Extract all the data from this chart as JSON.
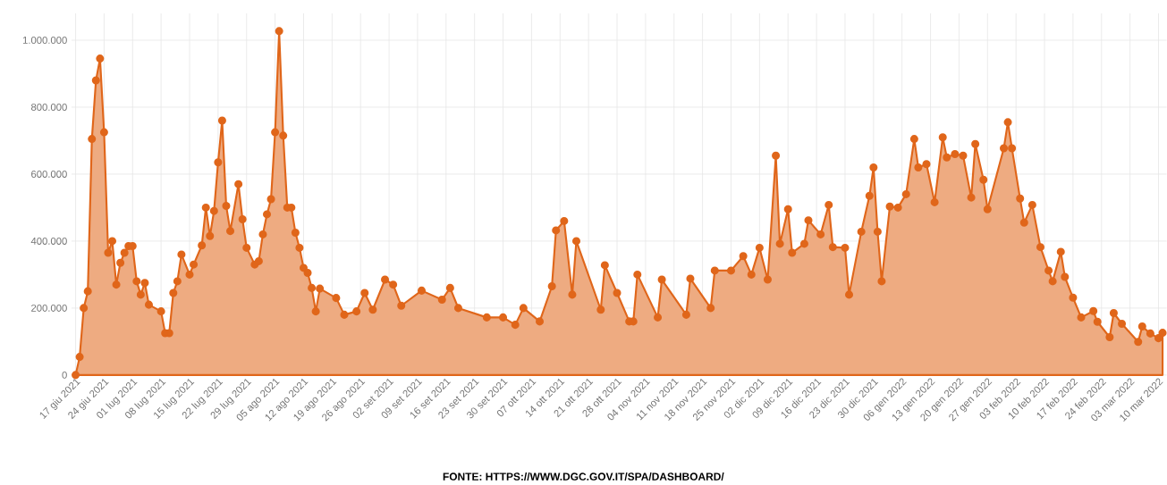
{
  "chart_data": {
    "type": "area",
    "x": [
      "2021-06-17",
      "2021-06-18",
      "2021-06-19",
      "2021-06-20",
      "2021-06-21",
      "2021-06-22",
      "2021-06-23",
      "2021-06-24",
      "2021-06-25",
      "2021-06-26",
      "2021-06-27",
      "2021-06-28",
      "2021-06-29",
      "2021-06-30",
      "2021-07-01",
      "2021-07-02",
      "2021-07-03",
      "2021-07-04",
      "2021-07-05",
      "2021-07-08",
      "2021-07-09",
      "2021-07-10",
      "2021-07-11",
      "2021-07-12",
      "2021-07-13",
      "2021-07-15",
      "2021-07-16",
      "2021-07-18",
      "2021-07-19",
      "2021-07-20",
      "2021-07-21",
      "2021-07-22",
      "2021-07-23",
      "2021-07-24",
      "2021-07-25",
      "2021-07-27",
      "2021-07-28",
      "2021-07-29",
      "2021-07-31",
      "2021-08-01",
      "2021-08-02",
      "2021-08-03",
      "2021-08-04",
      "2021-08-05",
      "2021-08-06",
      "2021-08-07",
      "2021-08-08",
      "2021-08-09",
      "2021-08-10",
      "2021-08-11",
      "2021-08-12",
      "2021-08-13",
      "2021-08-14",
      "2021-08-15",
      "2021-08-16",
      "2021-08-20",
      "2021-08-22",
      "2021-08-25",
      "2021-08-27",
      "2021-08-29",
      "2021-09-01",
      "2021-09-03",
      "2021-09-05",
      "2021-09-10",
      "2021-09-15",
      "2021-09-17",
      "2021-09-19",
      "2021-09-26",
      "2021-09-30",
      "2021-10-03",
      "2021-10-05",
      "2021-10-09",
      "2021-10-12",
      "2021-10-13",
      "2021-10-15",
      "2021-10-17",
      "2021-10-18",
      "2021-10-24",
      "2021-10-25",
      "2021-10-28",
      "2021-10-31",
      "2021-11-01",
      "2021-11-02",
      "2021-11-07",
      "2021-11-08",
      "2021-11-14",
      "2021-11-15",
      "2021-11-20",
      "2021-11-21",
      "2021-11-25",
      "2021-11-28",
      "2021-11-30",
      "2021-12-02",
      "2021-12-04",
      "2021-12-06",
      "2021-12-07",
      "2021-12-09",
      "2021-12-10",
      "2021-12-13",
      "2021-12-14",
      "2021-12-17",
      "2021-12-19",
      "2021-12-20",
      "2021-12-23",
      "2021-12-24",
      "2021-12-27",
      "2021-12-29",
      "2021-12-30",
      "2021-12-31",
      "2022-01-01",
      "2022-01-03",
      "2022-01-05",
      "2022-01-07",
      "2022-01-09",
      "2022-01-10",
      "2022-01-12",
      "2022-01-14",
      "2022-01-16",
      "2022-01-17",
      "2022-01-19",
      "2022-01-21",
      "2022-01-23",
      "2022-01-24",
      "2022-01-26",
      "2022-01-27",
      "2022-01-31",
      "2022-02-01",
      "2022-02-02",
      "2022-02-04",
      "2022-02-05",
      "2022-02-07",
      "2022-02-09",
      "2022-02-11",
      "2022-02-12",
      "2022-02-14",
      "2022-02-15",
      "2022-02-17",
      "2022-02-19",
      "2022-02-22",
      "2022-02-23",
      "2022-02-26",
      "2022-02-27",
      "2022-03-01",
      "2022-03-05",
      "2022-03-06",
      "2022-03-08",
      "2022-03-10",
      "2022-03-11"
    ],
    "values": [
      0,
      54000,
      200000,
      250000,
      705000,
      880000,
      945000,
      725000,
      365000,
      400000,
      270000,
      335000,
      365000,
      385000,
      385000,
      280000,
      240000,
      275000,
      210000,
      190000,
      125000,
      125000,
      245000,
      280000,
      360000,
      300000,
      330000,
      387000,
      500000,
      415000,
      490000,
      635000,
      760000,
      505000,
      430000,
      570000,
      465000,
      380000,
      330000,
      340000,
      420000,
      480000,
      525000,
      725000,
      1027000,
      715000,
      500000,
      500000,
      425000,
      380000,
      320000,
      305000,
      260000,
      190000,
      258000,
      230000,
      180000,
      190000,
      245000,
      195000,
      285000,
      270000,
      207000,
      252000,
      225000,
      260000,
      200000,
      172000,
      172000,
      150000,
      200000,
      160000,
      265000,
      432000,
      460000,
      240000,
      400000,
      195000,
      328000,
      245000,
      160000,
      160000,
      300000,
      172000,
      285000,
      180000,
      288000,
      200000,
      312000,
      312000,
      355000,
      300000,
      380000,
      285000,
      655000,
      392000,
      495000,
      365000,
      392000,
      462000,
      420000,
      508000,
      382000,
      380000,
      240000,
      428000,
      535000,
      620000,
      428000,
      280000,
      503000,
      500000,
      540000,
      705000,
      620000,
      630000,
      516000,
      710000,
      650000,
      660000,
      655000,
      530000,
      690000,
      583000,
      495000,
      677000,
      755000,
      677000,
      527000,
      455000,
      508000,
      382000,
      312000,
      280000,
      368000,
      293000,
      231000,
      172000,
      191000,
      159000,
      113000,
      185000,
      153000,
      99000,
      145000,
      124000,
      110000,
      126000
    ],
    "color": "#e0661a",
    "marker": "circle",
    "grid": true,
    "xlim": [
      "2021-06-16",
      "2022-03-12"
    ],
    "ylim": [
      0,
      1080000
    ],
    "yticks": [
      0,
      {
        "value": 200000,
        "label": "200.000"
      },
      {
        "value": 400000,
        "label": "400.000"
      },
      {
        "value": 600000,
        "label": "600.000"
      },
      {
        "value": 800000,
        "label": "800.000"
      },
      {
        "value": 1000000,
        "label": "1.000.000"
      }
    ],
    "xticks": [
      {
        "value": "2021-06-17",
        "label": "17 giu 2021"
      },
      {
        "value": "2021-06-24",
        "label": "24 giu 2021"
      },
      {
        "value": "2021-07-01",
        "label": "01 lug 2021"
      },
      {
        "value": "2021-07-08",
        "label": "08 lug 2021"
      },
      {
        "value": "2021-07-15",
        "label": "15 lug 2021"
      },
      {
        "value": "2021-07-22",
        "label": "22 lug 2021"
      },
      {
        "value": "2021-07-29",
        "label": "29 lug 2021"
      },
      {
        "value": "2021-08-05",
        "label": "05 ago 2021"
      },
      {
        "value": "2021-08-12",
        "label": "12 ago 2021"
      },
      {
        "value": "2021-08-19",
        "label": "19 ago 2021"
      },
      {
        "value": "2021-08-26",
        "label": "26 ago 2021"
      },
      {
        "value": "2021-09-02",
        "label": "02 set 2021"
      },
      {
        "value": "2021-09-09",
        "label": "09 set 2021"
      },
      {
        "value": "2021-09-16",
        "label": "16 set 2021"
      },
      {
        "value": "2021-09-23",
        "label": "23 set 2021"
      },
      {
        "value": "2021-09-30",
        "label": "30 set 2021"
      },
      {
        "value": "2021-10-07",
        "label": "07 ott 2021"
      },
      {
        "value": "2021-10-14",
        "label": "14 ott 2021"
      },
      {
        "value": "2021-10-21",
        "label": "21 ott 2021"
      },
      {
        "value": "2021-10-28",
        "label": "28 ott 2021"
      },
      {
        "value": "2021-11-04",
        "label": "04 nov 2021"
      },
      {
        "value": "2021-11-11",
        "label": "11 nov 2021"
      },
      {
        "value": "2021-11-18",
        "label": "18 nov 2021"
      },
      {
        "value": "2021-11-25",
        "label": "25 nov 2021"
      },
      {
        "value": "2021-12-02",
        "label": "02 dic 2021"
      },
      {
        "value": "2021-12-09",
        "label": "09 dic 2021"
      },
      {
        "value": "2021-12-16",
        "label": "16 dic 2021"
      },
      {
        "value": "2021-12-23",
        "label": "23 dic 2021"
      },
      {
        "value": "2021-12-30",
        "label": "30 dic 2021"
      },
      {
        "value": "2022-01-06",
        "label": "06 gen 2022"
      },
      {
        "value": "2022-01-13",
        "label": "13 gen 2022"
      },
      {
        "value": "2022-01-20",
        "label": "20 gen 2022"
      },
      {
        "value": "2022-01-27",
        "label": "27 gen 2022"
      },
      {
        "value": "2022-02-03",
        "label": "03 feb 2022"
      },
      {
        "value": "2022-02-10",
        "label": "10 feb 2022"
      },
      {
        "value": "2022-02-17",
        "label": "17 feb 2022"
      },
      {
        "value": "2022-02-24",
        "label": "24 feb 2022"
      },
      {
        "value": "2022-03-03",
        "label": "03 mar 2022"
      },
      {
        "value": "2022-03-10",
        "label": "10 mar 2022"
      }
    ],
    "annotations": [
      "FONTE: HTTPS://WWW.DGC.GOV.IT/SPA/DASHBOARD/"
    ]
  }
}
